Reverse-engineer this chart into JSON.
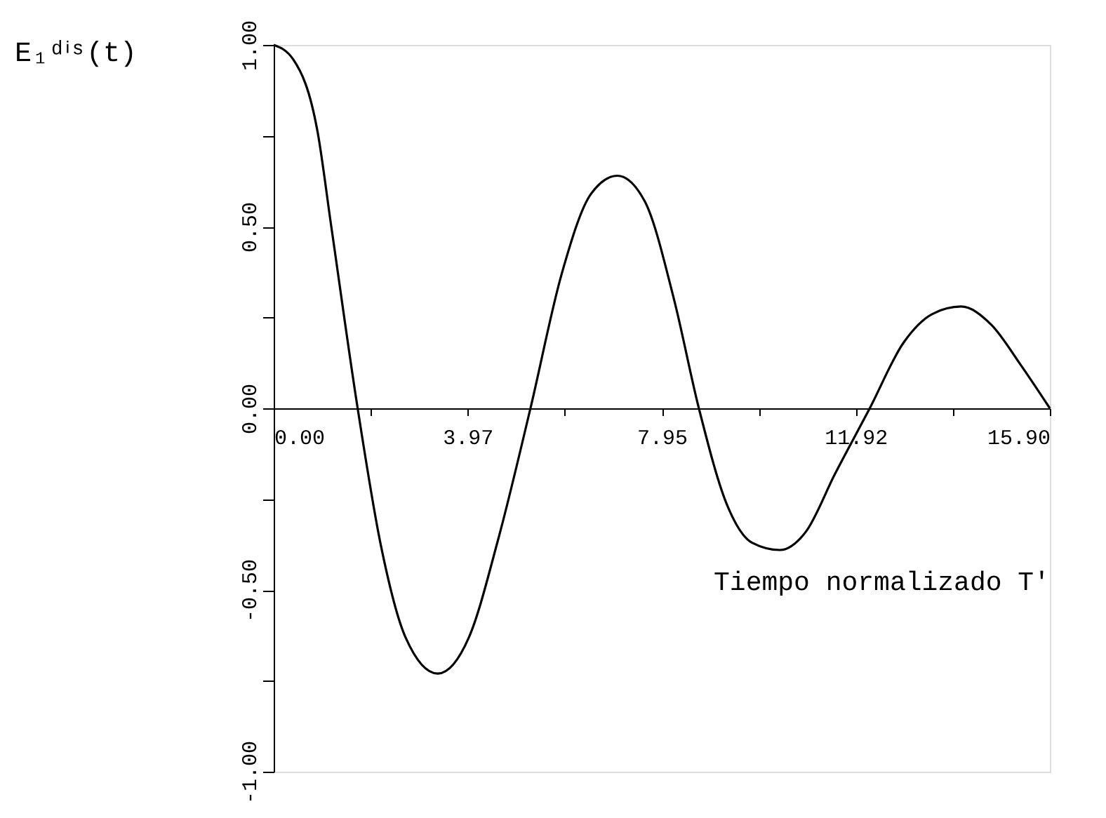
{
  "chart_data": {
    "type": "line",
    "ylabel": "E₁ᵈⁱˢ(t)",
    "xlabel": "Tiempo normalizado T'",
    "x": [
      0,
      0.4,
      0.9,
      1.18,
      1.72,
      2.2,
      2.7,
      3.36,
      4.0,
      4.6,
      5.26,
      5.9,
      6.5,
      7.04,
      7.6,
      8.2,
      8.71,
      9.3,
      9.8,
      10.37,
      10.9,
      11.5,
      12.21,
      12.9,
      13.5,
      14.08,
      14.7,
      15.3,
      15.9
    ],
    "series": [
      {
        "color": "#000000",
        "values": [
          1.0,
          0.96,
          0.76,
          0.5,
          0.0,
          -0.38,
          -0.63,
          -0.73,
          -0.63,
          -0.36,
          0.0,
          0.37,
          0.59,
          0.64,
          0.57,
          0.3,
          0.0,
          -0.27,
          -0.37,
          -0.39,
          -0.34,
          -0.18,
          0.0,
          0.18,
          0.26,
          0.28,
          0.23,
          0.12,
          0.0
        ]
      }
    ],
    "xlim": [
      0,
      15.9
    ],
    "ylim": [
      -1.0,
      1.0
    ],
    "xticks": [
      {
        "value": 0,
        "label": "0.00"
      },
      {
        "value": 1.99,
        "label": null
      },
      {
        "value": 3.97,
        "label": "3.97"
      },
      {
        "value": 5.96,
        "label": null
      },
      {
        "value": 7.95,
        "label": "7.95"
      },
      {
        "value": 9.94,
        "label": null
      },
      {
        "value": 11.92,
        "label": "11.92"
      },
      {
        "value": 13.91,
        "label": null
      },
      {
        "value": 15.9,
        "label": "15.90"
      }
    ],
    "yticks": [
      {
        "value": -1.0,
        "label": "-1.00"
      },
      {
        "value": -0.75,
        "label": null
      },
      {
        "value": -0.5,
        "label": "-0.50"
      },
      {
        "value": -0.25,
        "label": null
      },
      {
        "value": 0,
        "label": "0.00"
      },
      {
        "value": 0.25,
        "label": null
      },
      {
        "value": 0.5,
        "label": "0.50"
      },
      {
        "value": 0.75,
        "label": null
      },
      {
        "value": 1.0,
        "label": "1.00"
      }
    ],
    "grid": false,
    "marker": "none",
    "line_style": "solid"
  }
}
